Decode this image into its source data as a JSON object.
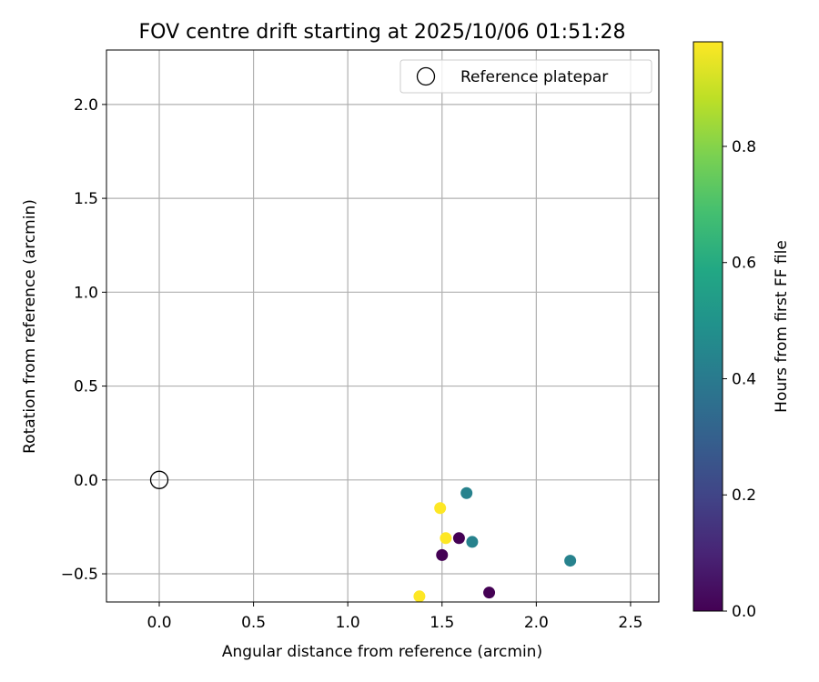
{
  "chart_data": {
    "type": "scatter",
    "title": "FOV centre drift starting at 2025/10/06 01:51:28",
    "xlabel": "Angular distance from reference (arcmin)",
    "ylabel": "Rotation from reference (arcmin)",
    "xlim": [
      -0.28,
      2.65
    ],
    "ylim": [
      -0.65,
      2.29
    ],
    "xticks": [
      0.0,
      0.5,
      1.0,
      1.5,
      2.0,
      2.5
    ],
    "xtick_labels": [
      "0.0",
      "0.5",
      "1.0",
      "1.5",
      "2.0",
      "2.5"
    ],
    "yticks": [
      -0.5,
      0.0,
      0.5,
      1.0,
      1.5,
      2.0
    ],
    "ytick_labels": [
      "−0.5",
      "0.0",
      "0.5",
      "1.0",
      "1.5",
      "2.0"
    ],
    "grid": true,
    "legend": {
      "position": "top-right",
      "label": "Reference platepar"
    },
    "reference_point": {
      "x": 0.0,
      "y": 0.0
    },
    "points": [
      {
        "x": 1.63,
        "y": -0.07,
        "hours": 0.43
      },
      {
        "x": 1.49,
        "y": -0.15,
        "hours": 0.98
      },
      {
        "x": 1.52,
        "y": -0.31,
        "hours": 0.98
      },
      {
        "x": 1.59,
        "y": -0.31,
        "hours": 0.0
      },
      {
        "x": 1.66,
        "y": -0.33,
        "hours": 0.43
      },
      {
        "x": 1.5,
        "y": -0.4,
        "hours": 0.0
      },
      {
        "x": 2.18,
        "y": -0.43,
        "hours": 0.43
      },
      {
        "x": 1.75,
        "y": -0.6,
        "hours": 0.0
      },
      {
        "x": 1.38,
        "y": -0.62,
        "hours": 0.98
      }
    ],
    "colorbar": {
      "label": "Hours from first FF file",
      "range": [
        0.0,
        0.98
      ],
      "ticks": [
        0.0,
        0.2,
        0.4,
        0.6,
        0.8
      ],
      "tick_labels": [
        "0.0",
        "0.2",
        "0.4",
        "0.6",
        "0.8"
      ],
      "colormap": "viridis"
    }
  }
}
